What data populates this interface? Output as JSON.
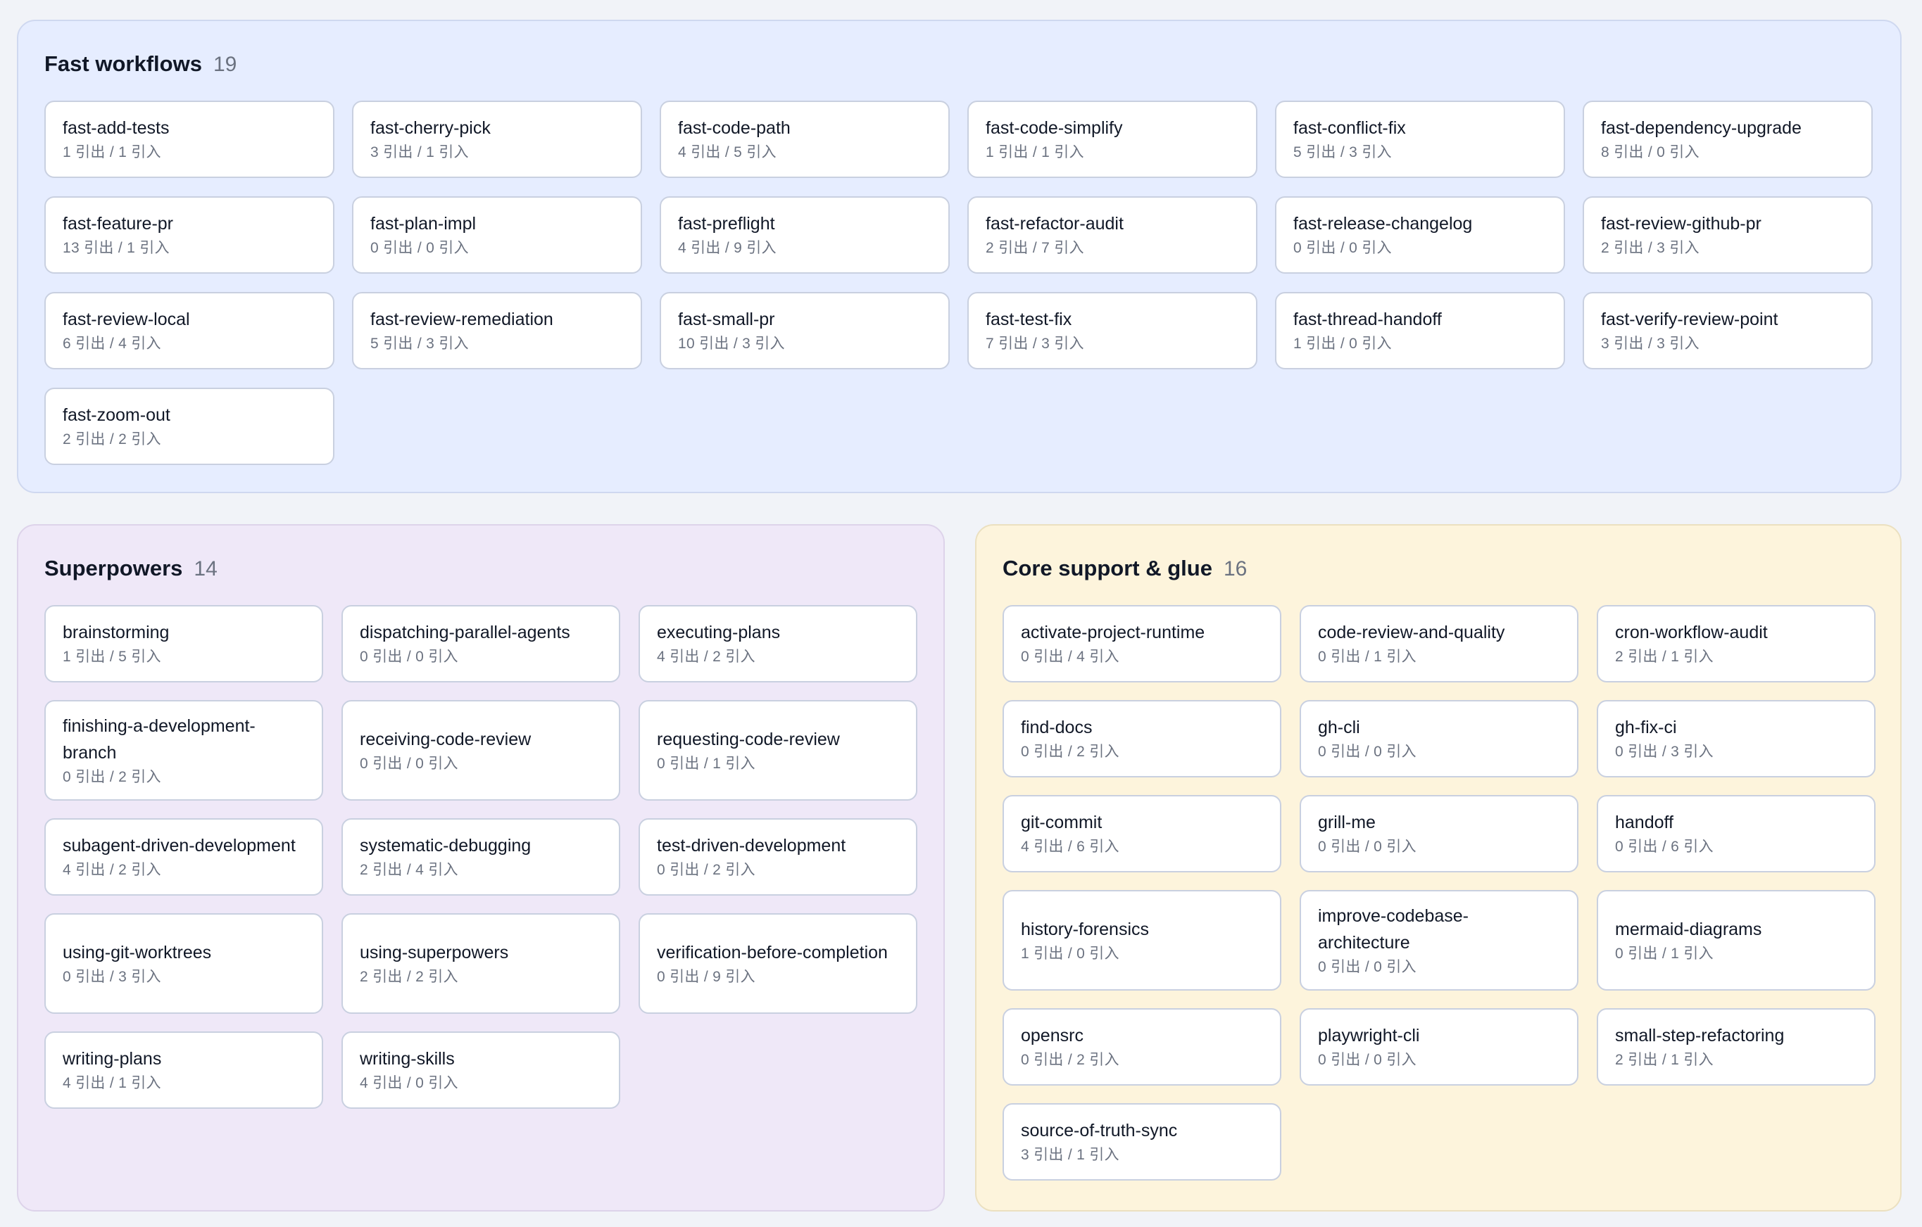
{
  "groups": {
    "fast": {
      "title": "Fast workflows",
      "count": "19",
      "color": "#e6edff",
      "items": [
        {
          "name": "fast-add-tests",
          "stats": "1 引出 / 1 引入"
        },
        {
          "name": "fast-cherry-pick",
          "stats": "3 引出 / 1 引入"
        },
        {
          "name": "fast-code-path",
          "stats": "4 引出 / 5 引入"
        },
        {
          "name": "fast-code-simplify",
          "stats": "1 引出 / 1 引入"
        },
        {
          "name": "fast-conflict-fix",
          "stats": "5 引出 / 3 引入"
        },
        {
          "name": "fast-dependency-upgrade",
          "stats": "8 引出 / 0 引入"
        },
        {
          "name": "fast-feature-pr",
          "stats": "13 引出 / 1 引入"
        },
        {
          "name": "fast-plan-impl",
          "stats": "0 引出 / 0 引入"
        },
        {
          "name": "fast-preflight",
          "stats": "4 引出 / 9 引入"
        },
        {
          "name": "fast-refactor-audit",
          "stats": "2 引出 / 7 引入"
        },
        {
          "name": "fast-release-changelog",
          "stats": "0 引出 / 0 引入"
        },
        {
          "name": "fast-review-github-pr",
          "stats": "2 引出 / 3 引入"
        },
        {
          "name": "fast-review-local",
          "stats": "6 引出 / 4 引入"
        },
        {
          "name": "fast-review-remediation",
          "stats": "5 引出 / 3 引入"
        },
        {
          "name": "fast-small-pr",
          "stats": "10 引出 / 3 引入"
        },
        {
          "name": "fast-test-fix",
          "stats": "7 引出 / 3 引入"
        },
        {
          "name": "fast-thread-handoff",
          "stats": "1 引出 / 0 引入"
        },
        {
          "name": "fast-verify-review-point",
          "stats": "3 引出 / 3 引入"
        },
        {
          "name": "fast-zoom-out",
          "stats": "2 引出 / 2 引入"
        }
      ]
    },
    "superpowers": {
      "title": "Superpowers",
      "count": "14",
      "color": "#efe8f8",
      "items": [
        {
          "name": "brainstorming",
          "stats": "1 引出 / 5 引入"
        },
        {
          "name": "dispatching-parallel-agents",
          "stats": "0 引出 / 0 引入"
        },
        {
          "name": "executing-plans",
          "stats": "4 引出 / 2 引入"
        },
        {
          "name": "finishing-a-development-branch",
          "stats": "0 引出 / 2 引入"
        },
        {
          "name": "receiving-code-review",
          "stats": "0 引出 / 0 引入"
        },
        {
          "name": "requesting-code-review",
          "stats": "0 引出 / 1 引入"
        },
        {
          "name": "subagent-driven-development",
          "stats": "4 引出 / 2 引入"
        },
        {
          "name": "systematic-debugging",
          "stats": "2 引出 / 4 引入"
        },
        {
          "name": "test-driven-development",
          "stats": "0 引出 / 2 引入"
        },
        {
          "name": "using-git-worktrees",
          "stats": "0 引出 / 3 引入"
        },
        {
          "name": "using-superpowers",
          "stats": "2 引出 / 2 引入"
        },
        {
          "name": "verification-before-completion",
          "stats": "0 引出 / 9 引入"
        },
        {
          "name": "writing-plans",
          "stats": "4 引出 / 1 引入"
        },
        {
          "name": "writing-skills",
          "stats": "4 引出 / 0 引入"
        }
      ]
    },
    "core": {
      "title": "Core support & glue",
      "count": "16",
      "color": "#fdf4dc",
      "items": [
        {
          "name": "activate-project-runtime",
          "stats": "0 引出 / 4 引入"
        },
        {
          "name": "code-review-and-quality",
          "stats": "0 引出 / 1 引入"
        },
        {
          "name": "cron-workflow-audit",
          "stats": "2 引出 / 1 引入"
        },
        {
          "name": "find-docs",
          "stats": "0 引出 / 2 引入"
        },
        {
          "name": "gh-cli",
          "stats": "0 引出 / 0 引入"
        },
        {
          "name": "gh-fix-ci",
          "stats": "0 引出 / 3 引入"
        },
        {
          "name": "git-commit",
          "stats": "4 引出 / 6 引入"
        },
        {
          "name": "grill-me",
          "stats": "0 引出 / 0 引入"
        },
        {
          "name": "handoff",
          "stats": "0 引出 / 6 引入"
        },
        {
          "name": "history-forensics",
          "stats": "1 引出 / 0 引入"
        },
        {
          "name": "improve-codebase-architecture",
          "stats": "0 引出 / 0 引入"
        },
        {
          "name": "mermaid-diagrams",
          "stats": "0 引出 / 1 引入"
        },
        {
          "name": "opensrc",
          "stats": "0 引出 / 2 引入"
        },
        {
          "name": "playwright-cli",
          "stats": "0 引出 / 0 引入"
        },
        {
          "name": "small-step-refactoring",
          "stats": "2 引出 / 1 引入"
        },
        {
          "name": "source-of-truth-sync",
          "stats": "3 引出 / 1 引入"
        }
      ]
    }
  }
}
